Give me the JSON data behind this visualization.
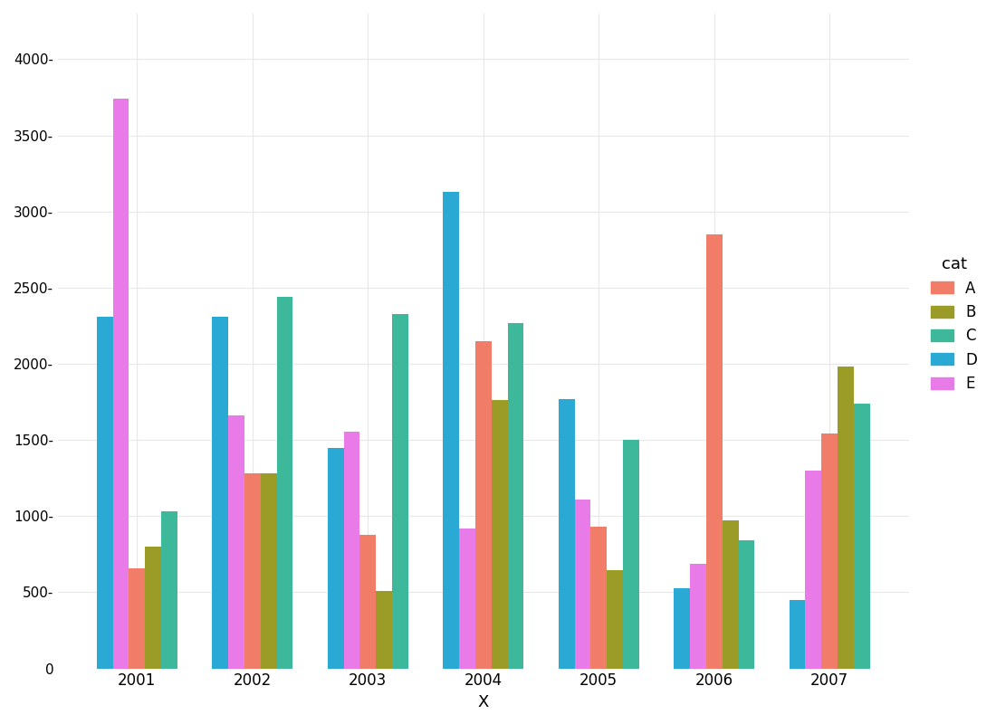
{
  "years": [
    2001,
    2002,
    2003,
    2004,
    2005,
    2006,
    2007
  ],
  "categories": [
    "A",
    "B",
    "C",
    "D",
    "E"
  ],
  "bar_order": [
    "D",
    "E",
    "A",
    "B",
    "C"
  ],
  "colors": {
    "A": "#F17C67",
    "B": "#9B9B27",
    "C": "#3DB89A",
    "D": "#29A9D4",
    "E": "#E87BE8"
  },
  "values": {
    "A": [
      660,
      1280,
      880,
      2150,
      930,
      2850,
      1540
    ],
    "B": [
      800,
      1280,
      510,
      1760,
      645,
      970,
      1985
    ],
    "C": [
      1030,
      2440,
      2330,
      2270,
      1500,
      840,
      1740
    ],
    "D": [
      2310,
      2310,
      1450,
      3130,
      1770,
      525,
      450
    ],
    "E": [
      3740,
      1660,
      1555,
      920,
      1110,
      685,
      1300
    ]
  },
  "xlabel": "X",
  "ylabel": "",
  "ylim": [
    0,
    4300
  ],
  "yticks": [
    0,
    500,
    1000,
    1500,
    2000,
    2500,
    3000,
    3500,
    4000
  ],
  "legend_title": "cat",
  "legend_order": [
    "A",
    "B",
    "C",
    "D",
    "E"
  ],
  "background_color": "#ffffff",
  "grid_color": "#e8e8e8",
  "bar_width": 0.14
}
